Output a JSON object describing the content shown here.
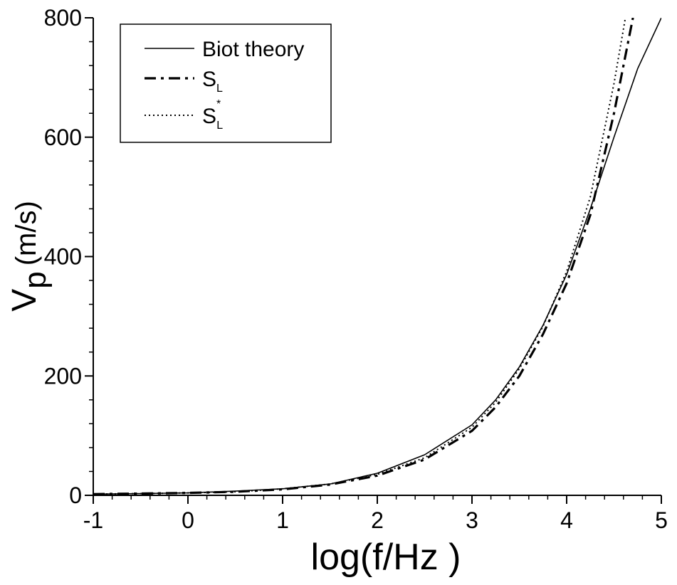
{
  "chart_data": {
    "type": "line",
    "title": "",
    "xlabel": "log(f/Hz )",
    "ylabel_main": "V",
    "ylabel_sub": "p",
    "ylabel_unit": "(m/s)",
    "xlim": [
      -1,
      5
    ],
    "ylim": [
      0,
      800
    ],
    "x_ticks": [
      -1,
      0,
      1,
      2,
      3,
      4,
      5
    ],
    "x_tick_labels": [
      "-1",
      "0",
      "1",
      "2",
      "3",
      "4",
      "5"
    ],
    "y_ticks": [
      0,
      200,
      400,
      600,
      800
    ],
    "y_tick_labels": [
      "0",
      "200",
      "400",
      "600",
      "800"
    ],
    "grid": false,
    "legend_position": "top-left",
    "series": [
      {
        "name": "Biot theory",
        "legend_main": "Biot theory",
        "legend_sub": "",
        "legend_sup": "",
        "style": "solid",
        "color": "#000000",
        "x": [
          -1,
          -0.5,
          0,
          0.5,
          1,
          1.5,
          2,
          2.5,
          3,
          3.25,
          3.5,
          3.75,
          4,
          4.25,
          4.5,
          4.75,
          5
        ],
        "y": [
          2,
          3,
          4,
          7,
          11,
          19,
          37,
          68,
          118,
          160,
          215,
          285,
          370,
          480,
          600,
          715,
          800
        ]
      },
      {
        "name": "S_L",
        "legend_main": "S",
        "legend_sub": "L",
        "legend_sup": "",
        "style": "dashdot",
        "color": "#000000",
        "x": [
          -1,
          -0.5,
          0,
          0.5,
          1,
          1.5,
          2,
          2.5,
          3,
          3.25,
          3.5,
          3.75,
          4,
          4.25,
          4.5,
          4.6,
          4.7
        ],
        "y": [
          2,
          3,
          4,
          6,
          10,
          18,
          33,
          60,
          108,
          148,
          200,
          270,
          355,
          470,
          640,
          720,
          800
        ]
      },
      {
        "name": "S_L*",
        "legend_main": "S",
        "legend_sub": "L",
        "legend_sup": "*",
        "style": "dotted",
        "color": "#000000",
        "x": [
          -1,
          -0.5,
          0,
          0.5,
          1,
          1.5,
          2,
          2.5,
          3,
          3.25,
          3.5,
          3.75,
          4,
          4.25,
          4.5,
          4.62
        ],
        "y": [
          2,
          3,
          4,
          6,
          11,
          19,
          35,
          63,
          114,
          156,
          212,
          283,
          375,
          500,
          690,
          800
        ]
      }
    ]
  }
}
